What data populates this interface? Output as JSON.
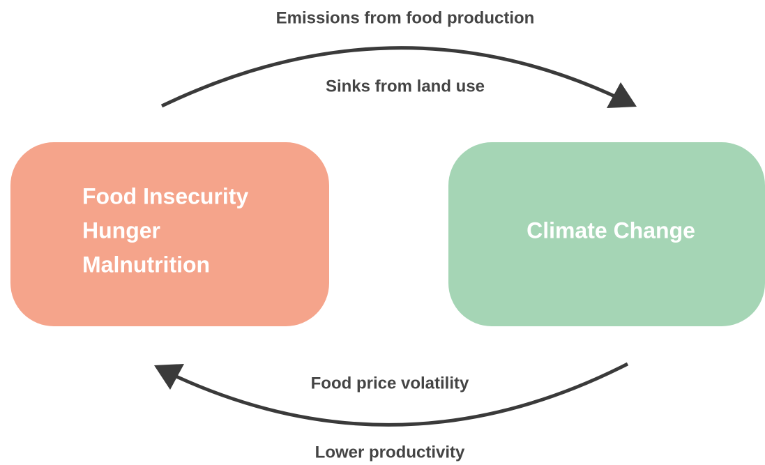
{
  "nodes": [
    {
      "lines": [
        "Food Insecurity",
        "Hunger",
        "Malnutrition"
      ]
    },
    {
      "lines": [
        "Climate Change"
      ]
    }
  ],
  "edges": [
    {
      "labels": [
        "Emissions from food production",
        "Sinks from land use"
      ]
    },
    {
      "labels": [
        "Food price volatility",
        "Lower productivity"
      ]
    }
  ]
}
